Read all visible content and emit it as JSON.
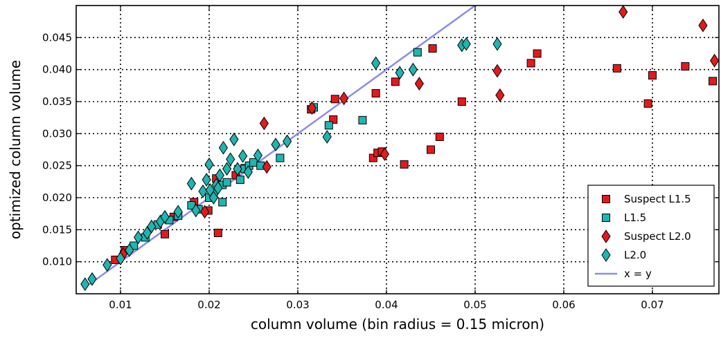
{
  "chart_data": {
    "type": "scatter",
    "title": "",
    "xlabel": "column volume (bin radius = 0.15 micron)",
    "ylabel": "optimized column volume",
    "xlim": [
      0.005,
      0.0775
    ],
    "ylim": [
      0.005,
      0.05
    ],
    "x_ticks": [
      0.01,
      0.02,
      0.03,
      0.04,
      0.05,
      0.06,
      0.07
    ],
    "x_tick_labels": [
      "0.01",
      "0.02",
      "0.03",
      "0.04",
      "0.05",
      "0.06",
      "0.07"
    ],
    "y_ticks": [
      0.01,
      0.015,
      0.02,
      0.025,
      0.03,
      0.035,
      0.04,
      0.045
    ],
    "y_tick_labels": [
      "0.010",
      "0.015",
      "0.020",
      "0.025",
      "0.030",
      "0.035",
      "0.040",
      "0.045"
    ],
    "grid": true,
    "legend_position": "lower-right",
    "series": [
      {
        "name": "Suspect L1.5",
        "marker": "square",
        "color": "#e31a1c",
        "points": [
          [
            0.0094,
            0.0103
          ],
          [
            0.0105,
            0.0118
          ],
          [
            0.015,
            0.0143
          ],
          [
            0.016,
            0.017
          ],
          [
            0.0183,
            0.0193
          ],
          [
            0.0199,
            0.018
          ],
          [
            0.021,
            0.0145
          ],
          [
            0.0208,
            0.023
          ],
          [
            0.023,
            0.0235
          ],
          [
            0.024,
            0.0246
          ],
          [
            0.0315,
            0.0338
          ],
          [
            0.034,
            0.0322
          ],
          [
            0.0342,
            0.0354
          ],
          [
            0.0385,
            0.0262
          ],
          [
            0.039,
            0.027
          ],
          [
            0.0395,
            0.0272
          ],
          [
            0.0388,
            0.0363
          ],
          [
            0.042,
            0.0252
          ],
          [
            0.045,
            0.0275
          ],
          [
            0.046,
            0.0295
          ],
          [
            0.041,
            0.0381
          ],
          [
            0.0452,
            0.0433
          ],
          [
            0.0485,
            0.035
          ],
          [
            0.0563,
            0.041
          ],
          [
            0.057,
            0.0425
          ],
          [
            0.066,
            0.0402
          ],
          [
            0.0695,
            0.0347
          ],
          [
            0.07,
            0.0391
          ],
          [
            0.0737,
            0.0405
          ],
          [
            0.0768,
            0.0382
          ]
        ]
      },
      {
        "name": "L1.5",
        "marker": "square",
        "color": "#1fb5b0",
        "points": [
          [
            0.0115,
            0.0125
          ],
          [
            0.0128,
            0.0138
          ],
          [
            0.0142,
            0.0158
          ],
          [
            0.0155,
            0.0165
          ],
          [
            0.0165,
            0.0172
          ],
          [
            0.018,
            0.0188
          ],
          [
            0.0188,
            0.0182
          ],
          [
            0.02,
            0.02
          ],
          [
            0.0205,
            0.0207
          ],
          [
            0.0215,
            0.0193
          ],
          [
            0.0215,
            0.022
          ],
          [
            0.022,
            0.0224
          ],
          [
            0.0235,
            0.0228
          ],
          [
            0.024,
            0.0245
          ],
          [
            0.0245,
            0.025
          ],
          [
            0.025,
            0.0255
          ],
          [
            0.0258,
            0.025
          ],
          [
            0.028,
            0.0262
          ],
          [
            0.0335,
            0.0313
          ],
          [
            0.0373,
            0.0321
          ],
          [
            0.0435,
            0.0427
          ],
          [
            0.0318,
            0.0341
          ]
        ]
      },
      {
        "name": "Suspect L2.0",
        "marker": "diamond",
        "color": "#e31a1c",
        "points": [
          [
            0.0103,
            0.0112
          ],
          [
            0.0195,
            0.0178
          ],
          [
            0.0262,
            0.0316
          ],
          [
            0.0265,
            0.0248
          ],
          [
            0.0316,
            0.034
          ],
          [
            0.0352,
            0.0355
          ],
          [
            0.0398,
            0.0268
          ],
          [
            0.0437,
            0.0378
          ],
          [
            0.0525,
            0.0398
          ],
          [
            0.0528,
            0.036
          ],
          [
            0.0667,
            0.049
          ],
          [
            0.0757,
            0.0469
          ],
          [
            0.077,
            0.0414
          ]
        ]
      },
      {
        "name": "L2.0",
        "marker": "diamond",
        "color": "#1fb5b0",
        "points": [
          [
            0.006,
            0.0065
          ],
          [
            0.0068,
            0.0073
          ],
          [
            0.0085,
            0.0095
          ],
          [
            0.01,
            0.0105
          ],
          [
            0.011,
            0.0118
          ],
          [
            0.012,
            0.0138
          ],
          [
            0.013,
            0.0145
          ],
          [
            0.0135,
            0.0155
          ],
          [
            0.0145,
            0.0163
          ],
          [
            0.015,
            0.017
          ],
          [
            0.0165,
            0.0178
          ],
          [
            0.018,
            0.0222
          ],
          [
            0.0185,
            0.018
          ],
          [
            0.0193,
            0.021
          ],
          [
            0.0197,
            0.0228
          ],
          [
            0.02,
            0.0252
          ],
          [
            0.0201,
            0.0212
          ],
          [
            0.0205,
            0.02
          ],
          [
            0.0208,
            0.022
          ],
          [
            0.021,
            0.0215
          ],
          [
            0.0212,
            0.0235
          ],
          [
            0.0216,
            0.0278
          ],
          [
            0.022,
            0.0245
          ],
          [
            0.0224,
            0.026
          ],
          [
            0.0228,
            0.0291
          ],
          [
            0.0232,
            0.0245
          ],
          [
            0.0238,
            0.0265
          ],
          [
            0.0244,
            0.024
          ],
          [
            0.0255,
            0.0266
          ],
          [
            0.0275,
            0.0283
          ],
          [
            0.0288,
            0.0288
          ],
          [
            0.0333,
            0.0295
          ],
          [
            0.0388,
            0.041
          ],
          [
            0.0415,
            0.0395
          ],
          [
            0.043,
            0.04
          ],
          [
            0.0485,
            0.0438
          ],
          [
            0.049,
            0.044
          ],
          [
            0.0525,
            0.044
          ]
        ]
      },
      {
        "name": "x = y",
        "type": "line",
        "color": "#8a8aee",
        "points": [
          [
            0.0065,
            0.0065
          ],
          [
            0.05,
            0.05
          ]
        ]
      }
    ]
  }
}
